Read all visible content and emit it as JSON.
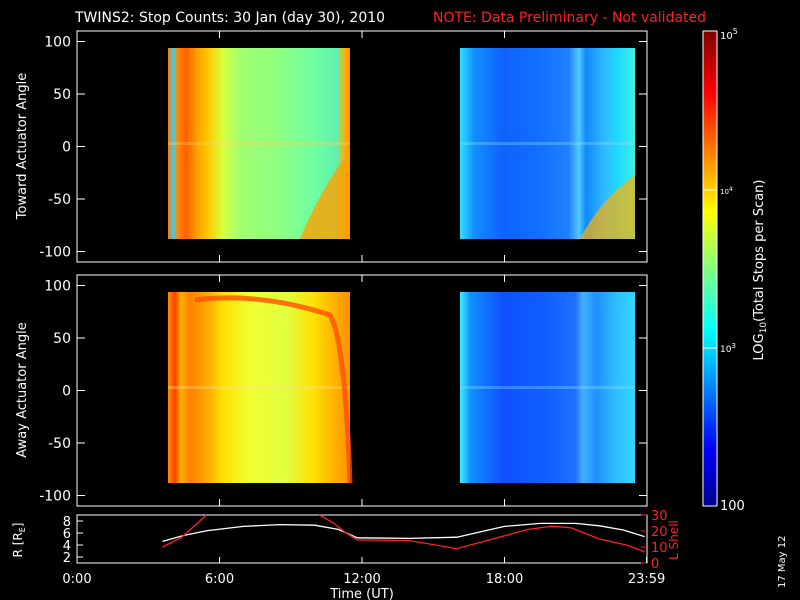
{
  "title": "TWINS2: Stop Counts: 30 Jan (day  30), 2010",
  "note": "NOTE: Data Preliminary - Not validated",
  "date_stamp": "17 May 12",
  "colors": {
    "note": "#ff2020",
    "background": "#000000",
    "axis": "#ffffff"
  },
  "chart_data": [
    {
      "type": "heatmap",
      "ylabel": "Toward Actuator Angle",
      "xlim": [
        0,
        24
      ],
      "ylim": [
        -110,
        110
      ],
      "yticks": [
        -100,
        -50,
        0,
        50,
        100
      ],
      "data_blocks": [
        {
          "x": [
            3.6,
            11.5
          ],
          "y": [
            -90,
            90
          ]
        },
        {
          "x": [
            16.1,
            23.9
          ],
          "y": [
            -90,
            90
          ]
        }
      ]
    },
    {
      "type": "heatmap",
      "ylabel": "Away Actuator Angle",
      "xlim": [
        0,
        24
      ],
      "ylim": [
        -110,
        110
      ],
      "yticks": [
        -100,
        -50,
        0,
        50,
        100
      ],
      "data_blocks": [
        {
          "x": [
            3.6,
            11.5
          ],
          "y": [
            -90,
            90
          ]
        },
        {
          "x": [
            16.1,
            23.9
          ],
          "y": [
            -90,
            90
          ]
        }
      ]
    },
    {
      "type": "line",
      "ylabel_left": "R [R",
      "ylabel_left_sub": "E",
      "ylabel_left_end": "]",
      "ylabel_right": "L Shell",
      "ylim_left": [
        1,
        9
      ],
      "yticks_left": [
        2,
        4,
        6,
        8
      ],
      "ylim_right": [
        0,
        30
      ],
      "yticks_right": [
        0,
        10,
        20,
        30
      ],
      "xlabel": "Time (UT)",
      "xticks": [
        0,
        6,
        12,
        18,
        23.983
      ],
      "xtick_labels": [
        "0:00",
        "6:00",
        "12:00",
        "18:00",
        "23:59"
      ],
      "series": [
        {
          "color": "#ffffff",
          "axis": "left",
          "x": [
            3.6,
            4.5,
            5.5,
            7,
            8.5,
            10,
            11,
            11.8,
            14,
            16,
            17,
            18,
            19.5,
            21,
            22,
            23,
            23.9
          ],
          "y": [
            4.6,
            5.6,
            6.4,
            7.1,
            7.4,
            7.3,
            6.6,
            5.2,
            5.1,
            5.3,
            6.2,
            7.1,
            7.6,
            7.6,
            7.2,
            6.5,
            5.4
          ]
        },
        {
          "color": "#ff2020",
          "axis": "right",
          "x": [
            3.6,
            4.4,
            5.0,
            5.45
          ],
          "y": [
            10,
            16,
            24,
            32
          ]
        },
        {
          "color": "#ff2020",
          "axis": "right",
          "x": [
            10.2,
            10.8,
            11.3,
            11.8,
            14,
            16,
            17.5,
            19,
            20,
            20.8,
            22,
            23.2,
            23.9
          ],
          "y": [
            32,
            25,
            19,
            14.5,
            14,
            9,
            15,
            21,
            23,
            22,
            15,
            11,
            7
          ]
        }
      ]
    }
  ],
  "colorbar": {
    "label_pre": "LOG",
    "label_sub": "10",
    "label_post": "(Total Stops per Scan)",
    "tick_top": "10",
    "tick_top_exp": "5",
    "tick_mid1": "10",
    "tick_mid1_exp": "4",
    "tick_mid2": "10",
    "tick_mid2_exp": "3",
    "tick_bottom": "100",
    "range": [
      100,
      100000
    ],
    "scale": "log"
  }
}
